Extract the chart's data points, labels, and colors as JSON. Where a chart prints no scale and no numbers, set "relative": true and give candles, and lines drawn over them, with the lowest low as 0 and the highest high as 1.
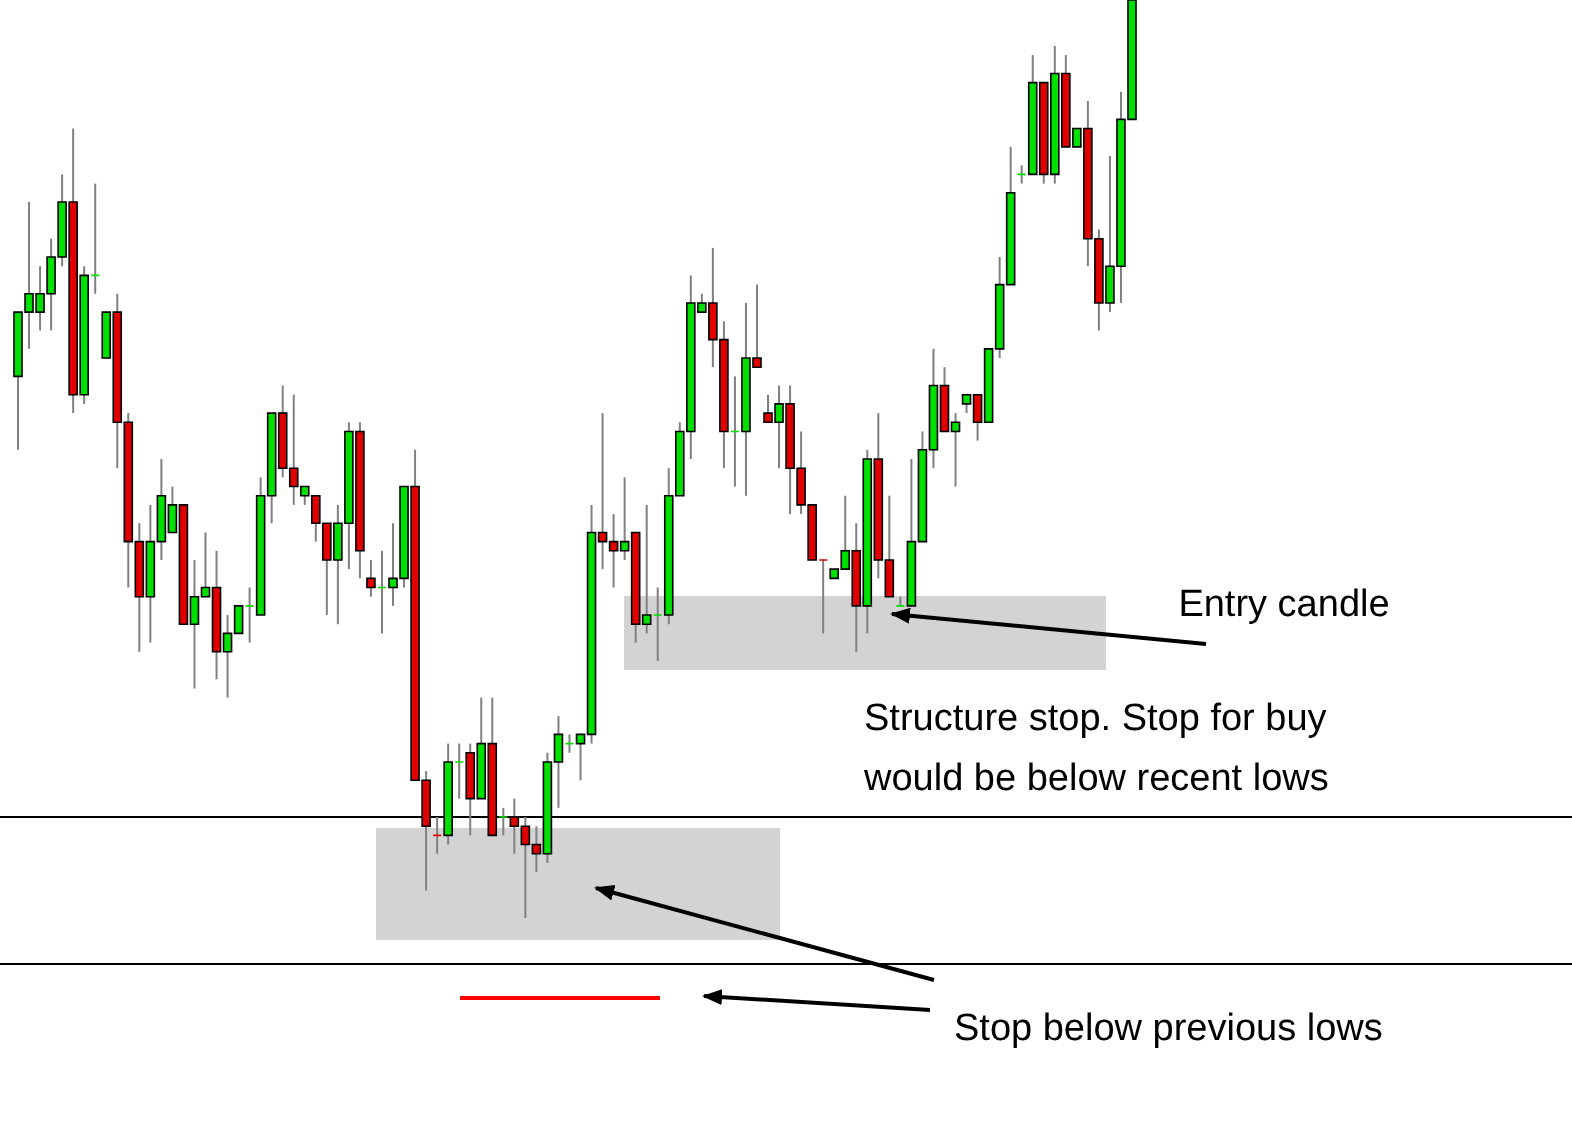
{
  "chart_data": {
    "type": "candlestick",
    "relative": true,
    "categories": [
      null,
      null,
      null,
      null,
      null,
      null,
      null,
      null,
      null,
      null,
      null,
      null,
      null,
      null,
      null,
      null,
      null,
      null,
      null,
      null,
      null,
      null,
      null,
      null,
      null,
      null,
      null,
      null,
      null,
      null,
      null,
      null,
      null,
      null,
      null,
      null,
      null,
      null,
      null,
      null,
      null,
      null,
      null,
      null,
      null,
      null,
      null,
      null,
      null,
      null,
      null,
      null,
      null,
      null,
      null,
      null,
      null,
      null,
      null,
      null,
      null,
      null,
      null,
      null,
      null,
      null,
      null,
      null,
      null,
      null,
      null,
      null,
      null,
      null,
      null,
      null,
      null,
      null,
      null,
      null,
      null,
      null,
      null,
      null,
      null,
      null,
      null,
      null,
      null,
      null,
      null,
      null,
      null,
      null,
      null,
      null,
      null,
      null,
      null,
      null,
      null,
      null
    ],
    "ohlc": [
      [
        0.59,
        0.66,
        0.51,
        0.66
      ],
      [
        0.66,
        0.78,
        0.62,
        0.68
      ],
      [
        0.66,
        0.71,
        0.64,
        0.68
      ],
      [
        0.68,
        0.74,
        0.64,
        0.72
      ],
      [
        0.72,
        0.81,
        0.71,
        0.78
      ],
      [
        0.78,
        0.86,
        0.55,
        0.57
      ],
      [
        0.57,
        0.71,
        0.56,
        0.7
      ],
      [
        0.7,
        0.8,
        0.68,
        0.7
      ],
      [
        0.61,
        0.66,
        0.61,
        0.66
      ],
      [
        0.66,
        0.68,
        0.49,
        0.54
      ],
      [
        0.54,
        0.55,
        0.36,
        0.41
      ],
      [
        0.41,
        0.43,
        0.29,
        0.35
      ],
      [
        0.35,
        0.45,
        0.3,
        0.41
      ],
      [
        0.41,
        0.5,
        0.39,
        0.46
      ],
      [
        0.42,
        0.47,
        0.42,
        0.45
      ],
      [
        0.45,
        0.45,
        0.32,
        0.32
      ],
      [
        0.32,
        0.39,
        0.25,
        0.35
      ],
      [
        0.35,
        0.42,
        0.35,
        0.36
      ],
      [
        0.36,
        0.4,
        0.26,
        0.29
      ],
      [
        0.29,
        0.33,
        0.24,
        0.31
      ],
      [
        0.31,
        0.34,
        0.31,
        0.34
      ],
      [
        0.34,
        0.36,
        0.3,
        0.34
      ],
      [
        0.33,
        0.48,
        0.33,
        0.46
      ],
      [
        0.46,
        0.55,
        0.43,
        0.55
      ],
      [
        0.55,
        0.58,
        0.48,
        0.49
      ],
      [
        0.49,
        0.57,
        0.45,
        0.47
      ],
      [
        0.46,
        0.47,
        0.45,
        0.47
      ],
      [
        0.46,
        0.46,
        0.41,
        0.43
      ],
      [
        0.43,
        0.43,
        0.33,
        0.39
      ],
      [
        0.39,
        0.45,
        0.32,
        0.43
      ],
      [
        0.43,
        0.54,
        0.38,
        0.53
      ],
      [
        0.53,
        0.54,
        0.37,
        0.4
      ],
      [
        0.37,
        0.39,
        0.35,
        0.36
      ],
      [
        0.36,
        0.4,
        0.31,
        0.36
      ],
      [
        0.36,
        0.43,
        0.34,
        0.37
      ],
      [
        0.37,
        0.47,
        0.36,
        0.47
      ],
      [
        0.47,
        0.51,
        0.15,
        0.15
      ],
      [
        0.15,
        0.16,
        0.03,
        0.1
      ],
      [
        0.09,
        0.11,
        0.07,
        0.09
      ],
      [
        0.09,
        0.19,
        0.08,
        0.17
      ],
      [
        0.17,
        0.19,
        0.13,
        0.17
      ],
      [
        0.18,
        0.19,
        0.09,
        0.13
      ],
      [
        0.13,
        0.24,
        0.13,
        0.19
      ],
      [
        0.19,
        0.24,
        0.09,
        0.09
      ],
      [
        0.11,
        0.12,
        0.09,
        0.11
      ],
      [
        0.11,
        0.13,
        0.07,
        0.1
      ],
      [
        0.1,
        0.11,
        0,
        0.08
      ],
      [
        0.08,
        0.1,
        0.05,
        0.07
      ],
      [
        0.07,
        0.18,
        0.06,
        0.17
      ],
      [
        0.17,
        0.22,
        0.12,
        0.2
      ],
      [
        0.19,
        0.2,
        0.18,
        0.19
      ],
      [
        0.19,
        0.2,
        0.15,
        0.2
      ],
      [
        0.2,
        0.45,
        0.19,
        0.42
      ],
      [
        0.42,
        0.55,
        0.38,
        0.41
      ],
      [
        0.41,
        0.44,
        0.36,
        0.4
      ],
      [
        0.4,
        0.48,
        0.39,
        0.41
      ],
      [
        0.42,
        0.42,
        0.3,
        0.32
      ],
      [
        0.32,
        0.45,
        0.31,
        0.33
      ],
      [
        0.33,
        0.36,
        0.28,
        0.33
      ],
      [
        0.33,
        0.49,
        0.32,
        0.46
      ],
      [
        0.46,
        0.54,
        0.46,
        0.53
      ],
      [
        0.53,
        0.7,
        0.5,
        0.67
      ],
      [
        0.66,
        0.68,
        0.66,
        0.67
      ],
      [
        0.67,
        0.73,
        0.6,
        0.63
      ],
      [
        0.63,
        0.65,
        0.49,
        0.53
      ],
      [
        0.53,
        0.59,
        0.47,
        0.53
      ],
      [
        0.53,
        0.67,
        0.46,
        0.61
      ],
      [
        0.61,
        0.69,
        0.6,
        0.6
      ],
      [
        0.55,
        0.57,
        0.54,
        0.54
      ],
      [
        0.54,
        0.58,
        0.49,
        0.56
      ],
      [
        0.56,
        0.58,
        0.44,
        0.49
      ],
      [
        0.49,
        0.53,
        0.44,
        0.45
      ],
      [
        0.45,
        0.45,
        0.39,
        0.39
      ],
      [
        0.39,
        0.39,
        0.31,
        0.39
      ],
      [
        0.37,
        0.38,
        0.37,
        0.38
      ],
      [
        0.38,
        0.46,
        0.38,
        0.4
      ],
      [
        0.4,
        0.43,
        0.29,
        0.34
      ],
      [
        0.34,
        0.51,
        0.31,
        0.5
      ],
      [
        0.5,
        0.55,
        0.37,
        0.39
      ],
      [
        0.39,
        0.46,
        0.35,
        0.35
      ],
      [
        0.34,
        0.35,
        0.34,
        0.34
      ],
      [
        0.34,
        0.5,
        0.34,
        0.41
      ],
      [
        0.41,
        0.53,
        0.41,
        0.51
      ],
      [
        0.51,
        0.62,
        0.49,
        0.58
      ],
      [
        0.58,
        0.6,
        0.53,
        0.53
      ],
      [
        0.53,
        0.55,
        0.47,
        0.54
      ],
      [
        0.56,
        0.57,
        0.55,
        0.57
      ],
      [
        0.57,
        0.57,
        0.52,
        0.54
      ],
      [
        0.54,
        0.62,
        0.54,
        0.62
      ],
      [
        0.62,
        0.72,
        0.61,
        0.69
      ],
      [
        0.69,
        0.84,
        0.69,
        0.79
      ],
      [
        0.81,
        0.82,
        0.8,
        0.81
      ],
      [
        0.81,
        0.94,
        0.81,
        0.91
      ],
      [
        0.91,
        0.91,
        0.8,
        0.81
      ],
      [
        0.81,
        0.95,
        0.8,
        0.92
      ],
      [
        0.92,
        0.94,
        0.84,
        0.84
      ],
      [
        0.84,
        0.86,
        0.84,
        0.86
      ],
      [
        0.86,
        0.89,
        0.71,
        0.74
      ],
      [
        0.74,
        0.75,
        0.64,
        0.67
      ],
      [
        0.67,
        0.83,
        0.66,
        0.71
      ],
      [
        0.71,
        0.9,
        0.67,
        0.87
      ],
      [
        0.87,
        1,
        0.87,
        1
      ]
    ],
    "colors": [
      "#00e000",
      "#00e000",
      "#00e000",
      "#00e000",
      "#00e000",
      "#e00000",
      "#00e000",
      "#00e000",
      "#00e000",
      "#e00000",
      "#e00000",
      "#e00000",
      "#00e000",
      "#00e000",
      "#00e000",
      "#e00000",
      "#00e000",
      "#00e000",
      "#e00000",
      "#00e000",
      "#00e000",
      "#00e000",
      "#00e000",
      "#00e000",
      "#e00000",
      "#e00000",
      "#00e000",
      "#e00000",
      "#e00000",
      "#00e000",
      "#00e000",
      "#e00000",
      "#e00000",
      "#00e000",
      "#00e000",
      "#00e000",
      "#e00000",
      "#e00000",
      "#e00000",
      "#00e000",
      "#00e000",
      "#e00000",
      "#00e000",
      "#e00000",
      "#00e000",
      "#e00000",
      "#e00000",
      "#e00000",
      "#00e000",
      "#00e000",
      "#00e000",
      "#00e000",
      "#00e000",
      "#e00000",
      "#e00000",
      "#00e000",
      "#e00000",
      "#00e000",
      "#00e000",
      "#00e000",
      "#00e000",
      "#00e000",
      "#00e000",
      "#e00000",
      "#e00000",
      "#00e000",
      "#00e000",
      "#e00000",
      "#e00000",
      "#00e000",
      "#e00000",
      "#e00000",
      "#e00000",
      "#e00000",
      "#00e000",
      "#00e000",
      "#e00000",
      "#00e000",
      "#e00000",
      "#e00000",
      "#00e000",
      "#00e000",
      "#00e000",
      "#00e000",
      "#e00000",
      "#00e000",
      "#00e000",
      "#e00000",
      "#00e000",
      "#00e000",
      "#00e000",
      "#00e000",
      "#00e000",
      "#e00000",
      "#00e000",
      "#e00000",
      "#00e000",
      "#e00000",
      "#e00000",
      "#00e000",
      "#00e000",
      "#00e000"
    ],
    "ref_lines": [
      {
        "axis": "y",
        "value": 0.11,
        "color": "#000000"
      },
      {
        "axis": "y",
        "value": -0.05,
        "color": "#000000"
      }
    ],
    "annotations": [
      "Entry candle",
      "Structure stop. Stop for buy would be below recent lows",
      "Stop below previous lows"
    ]
  }
}
